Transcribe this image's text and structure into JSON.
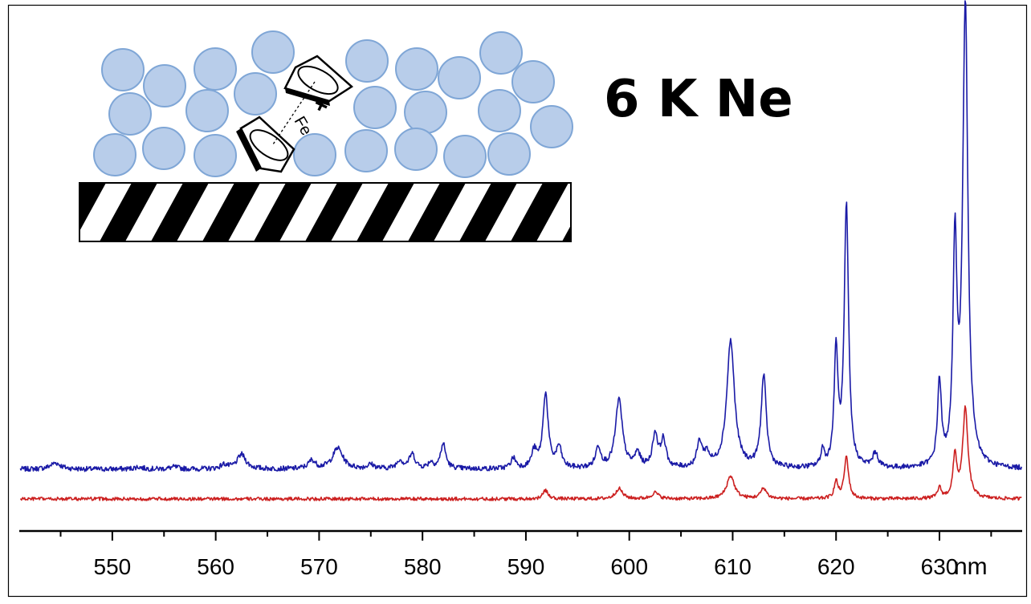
{
  "chart_data": {
    "type": "line",
    "title": "6 K  Ne",
    "xlabel": "",
    "ylabel": "",
    "x_unit": "nm",
    "xlim": [
      541,
      638
    ],
    "x_ticks": [
      "550",
      "560",
      "570",
      "580",
      "590",
      "600",
      "610",
      "620",
      "630"
    ],
    "legend": "none",
    "grid": false,
    "series": [
      {
        "color": "#1a1aa6",
        "offset": 1.0,
        "noise": 0.012,
        "baseline_start": 0.0,
        "baseline_end": 0.0,
        "peaks": [
          [
            544.5,
            0.03,
            0.6
          ],
          [
            552.5,
            0.01,
            0.5
          ],
          [
            556.0,
            0.01,
            0.5
          ],
          [
            560.8,
            0.02,
            0.4
          ],
          [
            562.5,
            0.07,
            0.5
          ],
          [
            569.3,
            0.04,
            0.4
          ],
          [
            571.8,
            0.1,
            0.6
          ],
          [
            575.0,
            0.02,
            0.4
          ],
          [
            577.8,
            0.04,
            0.35
          ],
          [
            579.0,
            0.07,
            0.35
          ],
          [
            580.8,
            0.03,
            0.3
          ],
          [
            582.0,
            0.12,
            0.3
          ],
          [
            588.8,
            0.05,
            0.3
          ],
          [
            590.8,
            0.08,
            0.3
          ],
          [
            591.9,
            0.36,
            0.3
          ],
          [
            593.2,
            0.1,
            0.3
          ],
          [
            597.0,
            0.1,
            0.3
          ],
          [
            599.0,
            0.33,
            0.4
          ],
          [
            600.8,
            0.07,
            0.3
          ],
          [
            602.5,
            0.16,
            0.3
          ],
          [
            603.3,
            0.13,
            0.3
          ],
          [
            606.8,
            0.12,
            0.3
          ],
          [
            607.5,
            0.06,
            0.3
          ],
          [
            609.8,
            0.61,
            0.45
          ],
          [
            613.0,
            0.44,
            0.3
          ],
          [
            618.7,
            0.08,
            0.2
          ],
          [
            620.0,
            0.55,
            0.22
          ],
          [
            621.0,
            1.25,
            0.25
          ],
          [
            623.8,
            0.07,
            0.3
          ],
          [
            630.0,
            0.4,
            0.22
          ],
          [
            631.5,
            1.05,
            0.22
          ],
          [
            632.5,
            2.21,
            0.3
          ]
        ]
      },
      {
        "color": "#cc2020",
        "offset": 0.0,
        "noise": 0.008,
        "baseline_start": 0.0,
        "baseline_end": 0.0,
        "peaks": [
          [
            591.9,
            0.04,
            0.3
          ],
          [
            599.0,
            0.05,
            0.4
          ],
          [
            602.5,
            0.03,
            0.4
          ],
          [
            609.8,
            0.11,
            0.45
          ],
          [
            613.0,
            0.05,
            0.35
          ],
          [
            620.0,
            0.08,
            0.22
          ],
          [
            621.0,
            0.2,
            0.25
          ],
          [
            630.0,
            0.05,
            0.22
          ],
          [
            631.5,
            0.2,
            0.22
          ],
          [
            632.5,
            0.43,
            0.3
          ]
        ]
      }
    ]
  },
  "inset": {
    "molecule_label": "Fe",
    "charge": "+"
  }
}
